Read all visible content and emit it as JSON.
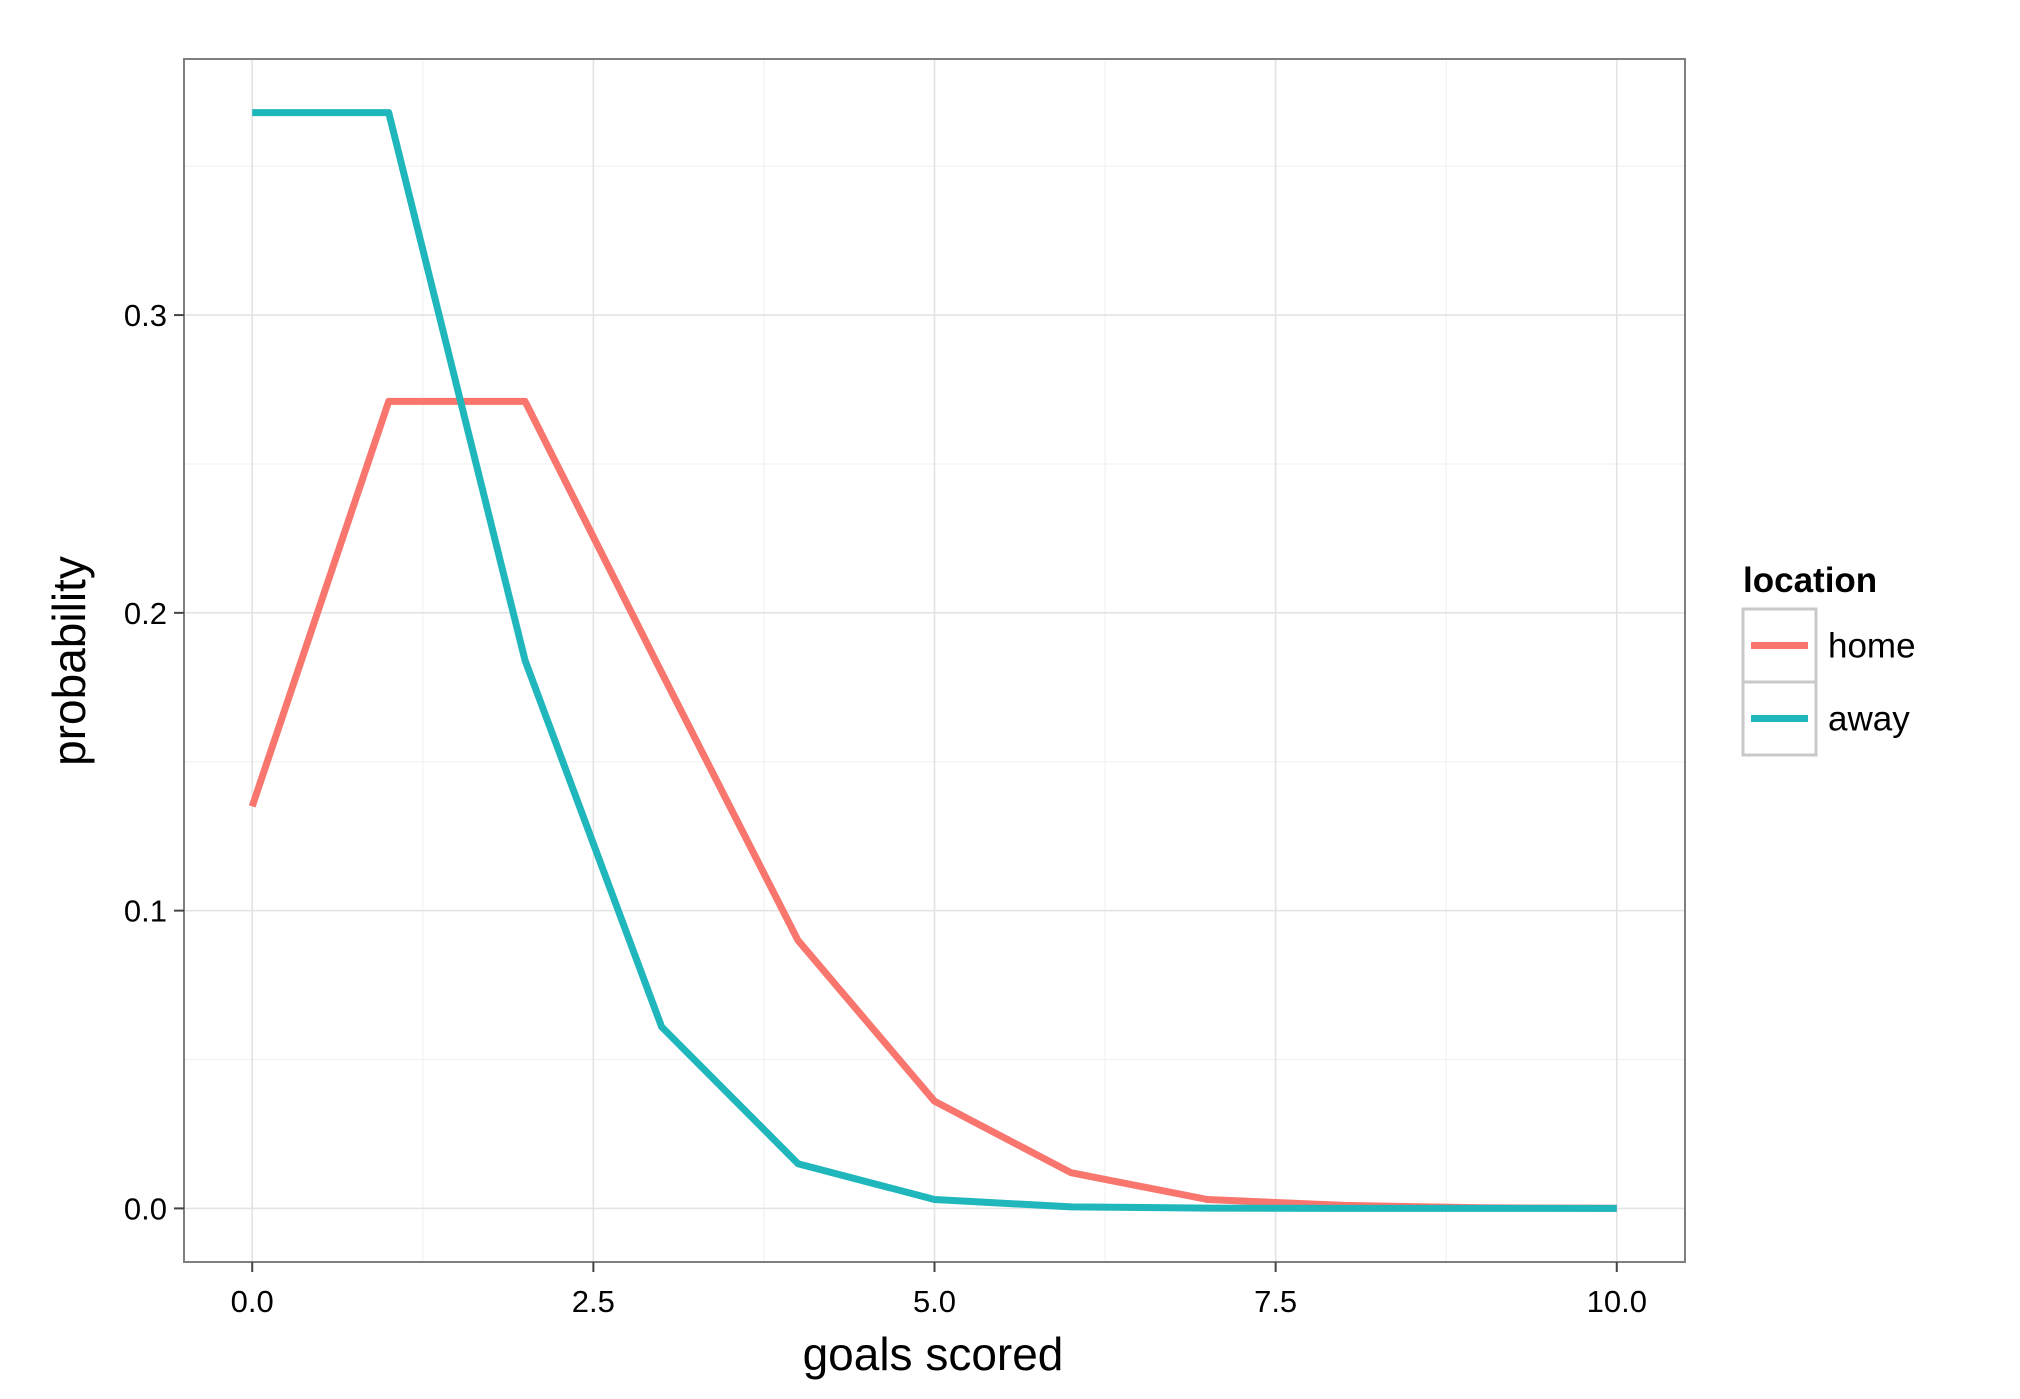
{
  "chart_data": {
    "type": "line",
    "xlabel": "goals scored",
    "ylabel": "probability",
    "xlim": [
      -0.5,
      10.5
    ],
    "ylim": [
      -0.018,
      0.386
    ],
    "x_ticks": [
      0.0,
      2.5,
      5.0,
      7.5,
      10.0
    ],
    "x_tick_labels": [
      "0.0",
      "2.5",
      "5.0",
      "7.5",
      "10.0"
    ],
    "y_ticks": [
      0.0,
      0.1,
      0.2,
      0.3
    ],
    "y_tick_labels": [
      "0.0",
      "0.1",
      "0.2",
      "0.3"
    ],
    "grid": true,
    "legend": {
      "title": "location",
      "position": "right"
    },
    "x": [
      0,
      1,
      2,
      3,
      4,
      5,
      6,
      7,
      8,
      9,
      10
    ],
    "series": [
      {
        "name": "home",
        "color": "#F8766D",
        "values": [
          0.135,
          0.271,
          0.271,
          0.18,
          0.09,
          0.036,
          0.012,
          0.003,
          0.001,
          0.0002,
          4e-05
        ]
      },
      {
        "name": "away",
        "color": "#1FB7BB",
        "values": [
          0.368,
          0.368,
          0.184,
          0.061,
          0.015,
          0.003,
          0.0005,
          0.0001,
          1e-05,
          1e-06,
          1e-07
        ]
      }
    ]
  }
}
